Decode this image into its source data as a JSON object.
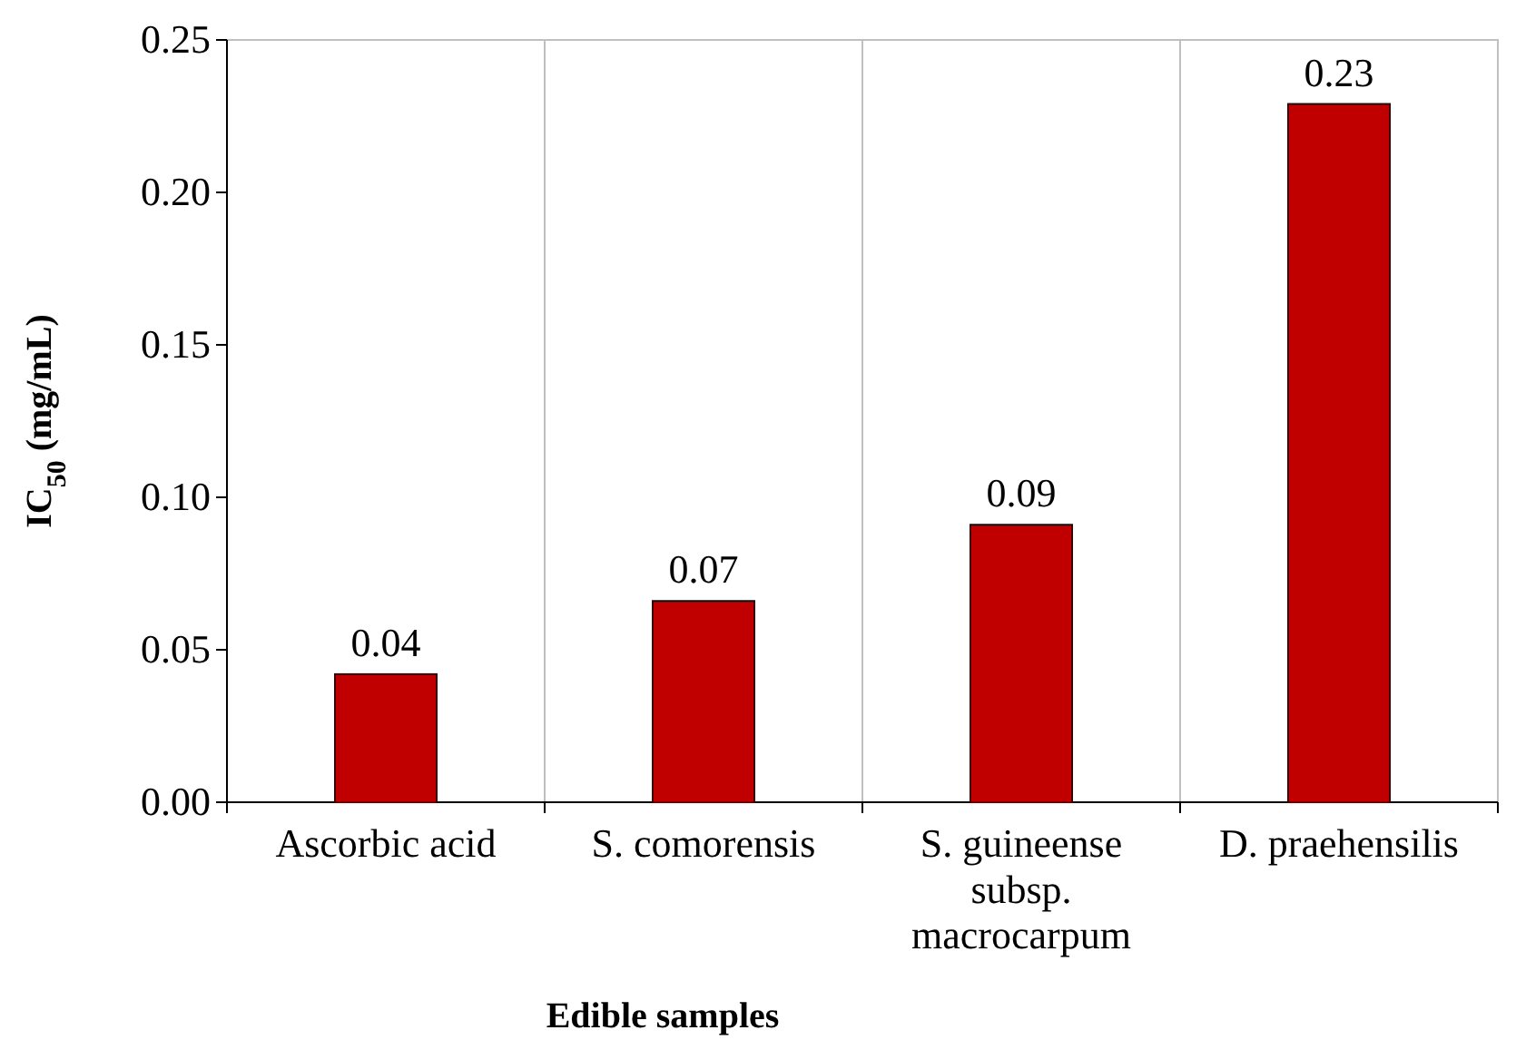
{
  "chart_data": {
    "type": "bar",
    "xlabel": "Edible samples",
    "ylabel": "IC$_{50}$ (mg/mL)",
    "categories": [
      "Ascorbic acid",
      "S. comorensis",
      "S. guineense subsp. macrocarpum",
      "D. praehensilis"
    ],
    "values": [
      0.042,
      0.066,
      0.091,
      0.229
    ],
    "value_labels": [
      "0.04",
      "0.07",
      "0.09",
      "0.23"
    ],
    "color": "#c00000",
    "ylim": [
      0,
      0.25
    ],
    "yticks": [
      "0.00",
      "0.05",
      "0.10",
      "0.15",
      "0.20",
      "0.25"
    ],
    "grid": "x"
  }
}
